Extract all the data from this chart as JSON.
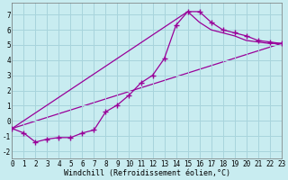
{
  "xlabel": "Windchill (Refroidissement éolien,°C)",
  "bg_color": "#c8ecf0",
  "grid_color": "#a8d4dc",
  "line_color": "#990099",
  "xlim": [
    0,
    23
  ],
  "ylim": [
    -2.5,
    7.8
  ],
  "xticks": [
    0,
    1,
    2,
    3,
    4,
    5,
    6,
    7,
    8,
    9,
    10,
    11,
    12,
    13,
    14,
    15,
    16,
    17,
    18,
    19,
    20,
    21,
    22,
    23
  ],
  "yticks": [
    -2,
    -1,
    0,
    1,
    2,
    3,
    4,
    5,
    6,
    7
  ],
  "line1_x": [
    0,
    1,
    2,
    3,
    4,
    5,
    6,
    7,
    8,
    9,
    10,
    11,
    12,
    13,
    14,
    15,
    16,
    17,
    18,
    19,
    20,
    21,
    22,
    23
  ],
  "line1_y": [
    -0.5,
    -0.8,
    -1.4,
    -1.2,
    -1.1,
    -1.1,
    -0.8,
    -0.6,
    0.6,
    1.05,
    1.7,
    2.5,
    3.0,
    4.1,
    6.3,
    7.2,
    7.2,
    6.5,
    6.0,
    5.8,
    5.6,
    5.3,
    5.2,
    5.1
  ],
  "line2_x": [
    0,
    23
  ],
  "line2_y": [
    -0.5,
    5.1
  ],
  "line3_x": [
    0,
    15,
    16,
    17,
    18,
    19,
    20,
    21,
    22,
    23
  ],
  "line3_y": [
    -0.5,
    7.2,
    6.5,
    6.0,
    5.8,
    5.6,
    5.3,
    5.2,
    5.1,
    5.1
  ],
  "tick_font_size": 5.5,
  "xlabel_font_size": 6.0
}
